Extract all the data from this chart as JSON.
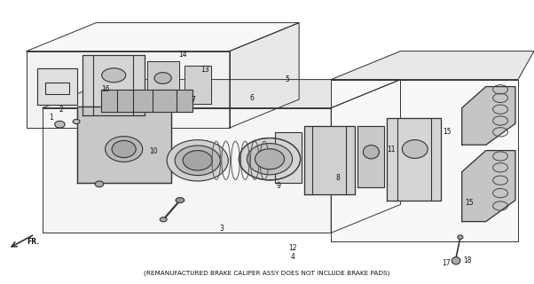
{
  "footer_text": "(REMANUFACTURED BRAKE CALIPER ASSY DOES NOT INCLUDE BRAKE PADS)",
  "bg_color": "#ffffff",
  "line_color": "#333333",
  "text_color": "#111111",
  "figsize": [
    6.02,
    3.2
  ],
  "dpi": 100
}
